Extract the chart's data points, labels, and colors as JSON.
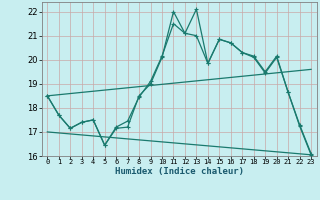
{
  "xlabel": "Humidex (Indice chaleur)",
  "bg_color": "#c8eef0",
  "grid_color": "#c8a8a8",
  "line_color": "#1a7a6e",
  "xlim": [
    -0.5,
    23.5
  ],
  "ylim": [
    16,
    22.4
  ],
  "xticks": [
    0,
    1,
    2,
    3,
    4,
    5,
    6,
    7,
    8,
    9,
    10,
    11,
    12,
    13,
    14,
    15,
    16,
    17,
    18,
    19,
    20,
    21,
    22,
    23
  ],
  "yticks": [
    16,
    17,
    18,
    19,
    20,
    21,
    22
  ],
  "line1_x": [
    0,
    1,
    2,
    3,
    4,
    5,
    6,
    7,
    8,
    9,
    10,
    11,
    12,
    13,
    14,
    15,
    16,
    17,
    18,
    19,
    20,
    21,
    22,
    23
  ],
  "line1_y": [
    18.5,
    17.7,
    17.15,
    17.4,
    17.5,
    16.45,
    17.15,
    17.2,
    18.5,
    19.0,
    20.1,
    22.0,
    21.1,
    22.1,
    19.85,
    20.85,
    20.7,
    20.3,
    20.15,
    19.5,
    20.15,
    18.65,
    17.25,
    16.05
  ],
  "line2_x": [
    0,
    1,
    2,
    3,
    4,
    5,
    6,
    7,
    8,
    9,
    10,
    11,
    12,
    13,
    14,
    15,
    16,
    17,
    18,
    19,
    20,
    21,
    22,
    23
  ],
  "line2_y": [
    18.5,
    17.7,
    17.15,
    17.4,
    17.5,
    16.45,
    17.2,
    17.45,
    18.45,
    19.1,
    20.15,
    21.5,
    21.1,
    21.0,
    19.85,
    20.85,
    20.7,
    20.3,
    20.1,
    19.45,
    20.1,
    18.65,
    17.3,
    16.1
  ],
  "line3_x": [
    0,
    23
  ],
  "line3_y": [
    18.5,
    19.6
  ],
  "line4_x": [
    0,
    23
  ],
  "line4_y": [
    17.0,
    16.05
  ]
}
